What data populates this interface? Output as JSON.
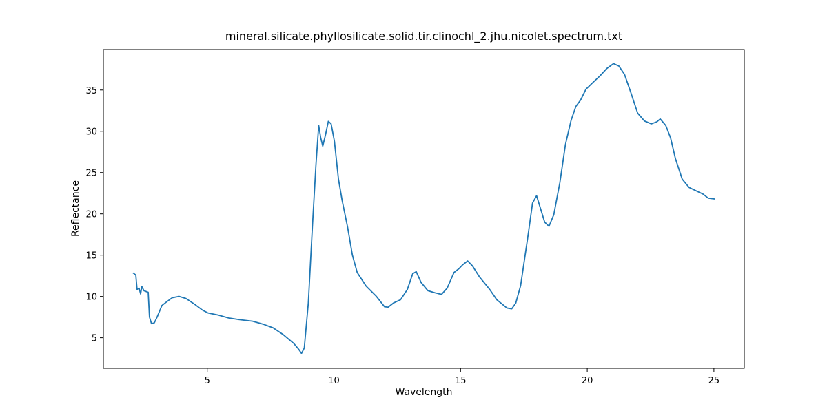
{
  "chart_data": {
    "type": "line",
    "title": "mineral.silicate.phyllosilicate.solid.tir.clinochl_2.jhu.nicolet.spectrum.txt",
    "x_label": "Wavelength",
    "y_label": "Reflectance",
    "xlim": [
      0.9,
      26.2
    ],
    "ylim": [
      1.3,
      39.9
    ],
    "xticks": [
      5,
      10,
      15,
      20,
      25
    ],
    "yticks": [
      5,
      10,
      15,
      20,
      25,
      30,
      35
    ],
    "grid": false,
    "series": [
      {
        "color": "#1f77b4",
        "x": [
          2.07,
          2.18,
          2.23,
          2.31,
          2.37,
          2.42,
          2.5,
          2.67,
          2.72,
          2.8,
          2.91,
          3.02,
          3.21,
          3.4,
          3.62,
          3.89,
          4.16,
          4.48,
          4.81,
          5.03,
          5.43,
          5.84,
          6.25,
          6.79,
          7.2,
          7.6,
          8.01,
          8.42,
          8.61,
          8.72,
          8.83,
          8.99,
          9.15,
          9.29,
          9.4,
          9.48,
          9.56,
          9.67,
          9.78,
          9.89,
          10.02,
          10.18,
          10.32,
          10.54,
          10.73,
          10.92,
          11.27,
          11.68,
          12.0,
          12.14,
          12.35,
          12.63,
          12.9,
          13.11,
          13.25,
          13.44,
          13.71,
          13.98,
          14.25,
          14.47,
          14.74,
          14.93,
          15.07,
          15.28,
          15.47,
          15.75,
          16.15,
          16.43,
          16.83,
          17.02,
          17.18,
          17.37,
          17.65,
          17.84,
          18.0,
          18.13,
          18.32,
          18.49,
          18.68,
          18.92,
          19.14,
          19.36,
          19.55,
          19.74,
          19.95,
          20.22,
          20.5,
          20.77,
          21.04,
          21.25,
          21.47,
          21.72,
          21.99,
          22.26,
          22.53,
          22.75,
          22.88,
          23.1,
          23.29,
          23.48,
          23.75,
          24.02,
          24.29,
          24.57,
          24.78,
          25.05
        ],
        "values": [
          12.85,
          12.6,
          10.85,
          11.0,
          10.3,
          11.2,
          10.7,
          10.5,
          7.5,
          6.7,
          6.8,
          7.5,
          8.9,
          9.35,
          9.85,
          10.0,
          9.75,
          9.1,
          8.35,
          8.0,
          7.75,
          7.4,
          7.2,
          7.0,
          6.65,
          6.2,
          5.35,
          4.3,
          3.6,
          3.1,
          3.75,
          9.2,
          18.4,
          25.9,
          30.7,
          29.2,
          28.2,
          29.6,
          31.2,
          30.9,
          28.8,
          24.2,
          21.7,
          18.4,
          15.0,
          12.9,
          11.25,
          10.0,
          8.75,
          8.7,
          9.2,
          9.6,
          10.85,
          12.75,
          13.0,
          11.7,
          10.7,
          10.45,
          10.25,
          11.0,
          12.9,
          13.35,
          13.8,
          14.3,
          13.7,
          12.35,
          10.85,
          9.6,
          8.6,
          8.5,
          9.2,
          11.3,
          17.1,
          21.3,
          22.2,
          20.9,
          19.0,
          18.5,
          19.9,
          23.8,
          28.4,
          31.3,
          33.0,
          33.8,
          35.1,
          35.9,
          36.7,
          37.6,
          38.2,
          37.9,
          36.9,
          34.7,
          32.2,
          31.25,
          30.9,
          31.15,
          31.5,
          30.7,
          29.2,
          26.7,
          24.2,
          23.2,
          22.8,
          22.4,
          21.9,
          21.8
        ]
      }
    ]
  }
}
